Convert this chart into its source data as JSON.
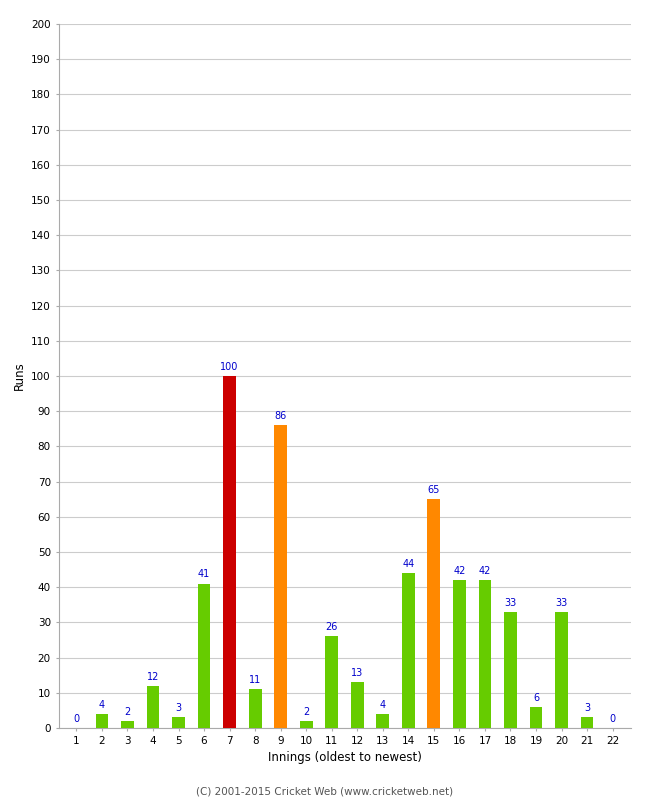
{
  "xlabel": "Innings (oldest to newest)",
  "ylabel": "Runs",
  "categories": [
    1,
    2,
    3,
    4,
    5,
    6,
    7,
    8,
    9,
    10,
    11,
    12,
    13,
    14,
    15,
    16,
    17,
    18,
    19,
    20,
    21,
    22
  ],
  "values": [
    0,
    4,
    2,
    12,
    3,
    41,
    100,
    11,
    86,
    2,
    26,
    13,
    4,
    44,
    65,
    42,
    42,
    33,
    6,
    33,
    3,
    0
  ],
  "bar_colors": [
    "#66cc00",
    "#66cc00",
    "#66cc00",
    "#66cc00",
    "#66cc00",
    "#66cc00",
    "#cc0000",
    "#66cc00",
    "#ff8800",
    "#66cc00",
    "#66cc00",
    "#66cc00",
    "#66cc00",
    "#66cc00",
    "#ff8800",
    "#66cc00",
    "#66cc00",
    "#66cc00",
    "#66cc00",
    "#66cc00",
    "#66cc00",
    "#66cc00"
  ],
  "ylim": [
    0,
    200
  ],
  "yticks": [
    0,
    10,
    20,
    30,
    40,
    50,
    60,
    70,
    80,
    90,
    100,
    110,
    120,
    130,
    140,
    150,
    160,
    170,
    180,
    190,
    200
  ],
  "label_color": "#0000cc",
  "background_color": "#ffffff",
  "grid_color": "#cccccc",
  "footer": "(C) 2001-2015 Cricket Web (www.cricketweb.net)"
}
